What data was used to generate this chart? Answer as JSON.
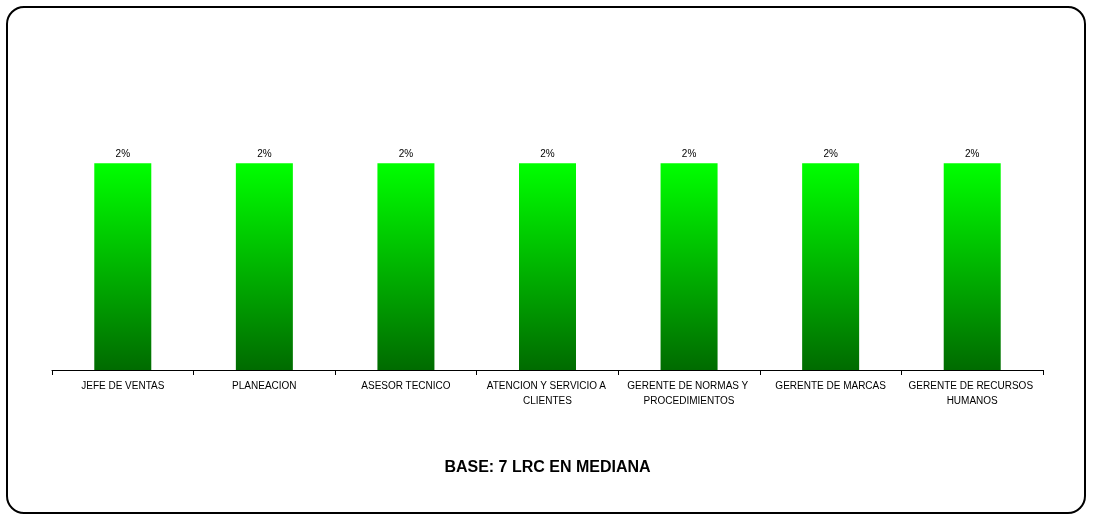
{
  "chart_data": {
    "type": "bar",
    "categories": [
      "JEFE DE VENTAS",
      "PLANEACION",
      "ASESOR TECNICO",
      "ATENCION Y SERVICIO A CLIENTES",
      "GERENTE DE NORMAS Y PROCEDIMIENTOS",
      "GERENTE DE MARCAS",
      "GERENTE DE RECURSOS HUMANOS"
    ],
    "values": [
      2,
      2,
      2,
      2,
      2,
      2,
      2
    ],
    "value_labels": [
      "2%",
      "2%",
      "2%",
      "2%",
      "2%",
      "2%",
      "2%"
    ],
    "color": "#00ff00",
    "annotations": [
      "BASE: 7 LRC EN MEDIANA"
    ],
    "grid": false
  }
}
